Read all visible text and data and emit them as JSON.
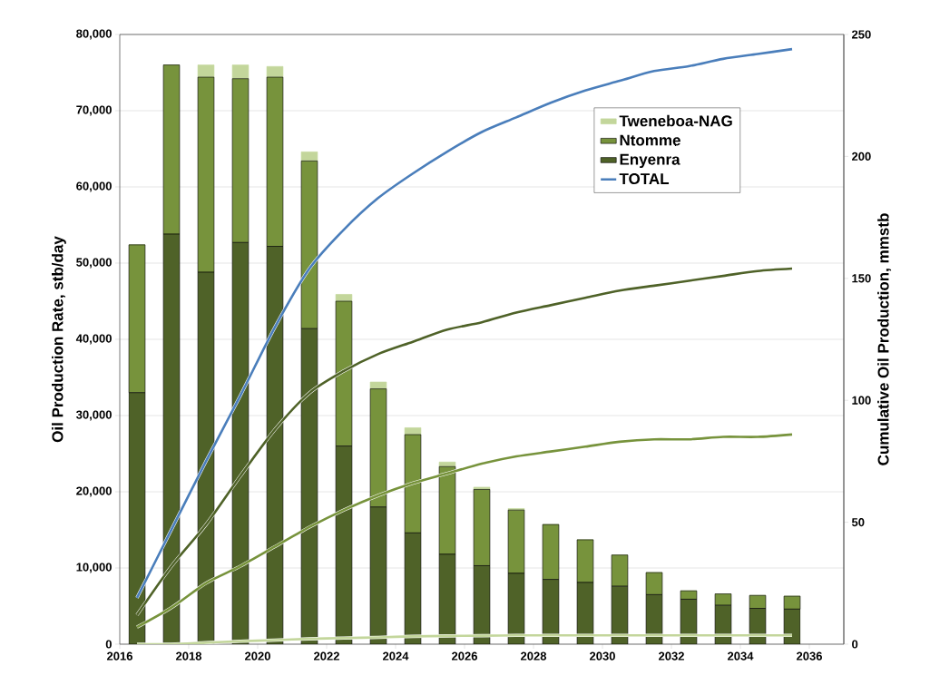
{
  "chart_data": {
    "type": "bar",
    "stacked": true,
    "ylabel": "Oil Production Rate, stb/day",
    "y2label": "Cumulative Oil Production, mmstb",
    "x": [
      2016.5,
      2017.5,
      2018.5,
      2019.5,
      2020.5,
      2021.5,
      2022.5,
      2023.5,
      2024.5,
      2025.5,
      2026.5,
      2027.5,
      2028.5,
      2029.5,
      2030.5,
      2031.5,
      2032.5,
      2033.5,
      2034.5,
      2035.5
    ],
    "xlim": [
      2016,
      2037
    ],
    "xticks": [
      2016,
      2018,
      2020,
      2022,
      2024,
      2026,
      2028,
      2030,
      2032,
      2034,
      2036
    ],
    "ylim": [
      0,
      80000
    ],
    "yticks": [
      0,
      {
        "value": 10000,
        "label": "10,000"
      },
      {
        "value": 20000,
        "label": "20,000"
      },
      {
        "value": 30000,
        "label": "30,000"
      },
      {
        "value": 40000,
        "label": "40,000"
      },
      {
        "value": 50000,
        "label": "50,000"
      },
      {
        "value": 60000,
        "label": "60,000"
      },
      {
        "value": 70000,
        "label": "70,000"
      },
      {
        "value": 80000,
        "label": "80,000"
      }
    ],
    "y2lim": [
      0,
      250
    ],
    "y2ticks": [
      0,
      50,
      100,
      150,
      200,
      250
    ],
    "grid": "y",
    "legend": "top right",
    "series": [
      {
        "name": "Enyenra",
        "color": "#4f6228",
        "values": [
          33000,
          53800,
          48800,
          52700,
          52200,
          41400,
          26000,
          18000,
          14600,
          11800,
          10300,
          9300,
          8500,
          8100,
          7600,
          6500,
          5900,
          5100,
          4700,
          4600
        ]
      },
      {
        "name": "Ntomme",
        "color": "#77933c",
        "values": [
          19400,
          22200,
          25600,
          21500,
          22200,
          22000,
          19000,
          15500,
          12900,
          11500,
          10000,
          8300,
          7200,
          5600,
          4100,
          2900,
          1100,
          1500,
          1700,
          1700
        ]
      },
      {
        "name": "Tweneboa-NAG",
        "color": "#c3d69b",
        "values": [
          0,
          0,
          1600,
          1800,
          1400,
          1200,
          900,
          900,
          900,
          600,
          300,
          200,
          0,
          0,
          0,
          0,
          0,
          0,
          0,
          0
        ]
      },
      {
        "name": "TOTAL",
        "type": "line",
        "axis": "y2",
        "color": "#4a7ebb",
        "values": [
          19,
          47,
          75,
          102,
          130,
          154,
          170,
          183,
          193,
          202,
          210,
          216,
          222,
          227,
          231,
          235,
          237,
          240,
          242,
          244
        ]
      },
      {
        "type": "line",
        "axis": "y2",
        "color": "#4f6228",
        "values": [
          12,
          32,
          49,
          69,
          88,
          103,
          112,
          119,
          124,
          129,
          132,
          136,
          139,
          142,
          145,
          147,
          149,
          151,
          153,
          154
        ]
      },
      {
        "type": "line",
        "axis": "y2",
        "color": "#77933c",
        "values": [
          7,
          15,
          25,
          32,
          40,
          48,
          55,
          61,
          66,
          70,
          74,
          77,
          79,
          81,
          83,
          84,
          84,
          85,
          85,
          86
        ]
      },
      {
        "type": "line",
        "axis": "y2",
        "color": "#c3d69b",
        "values": [
          0,
          0,
          0.6,
          1.2,
          1.7,
          2.2,
          2.5,
          2.8,
          3.2,
          3.4,
          3.5,
          3.6,
          3.6,
          3.6,
          3.6,
          3.6,
          3.6,
          3.6,
          3.6,
          3.6
        ]
      }
    ]
  }
}
